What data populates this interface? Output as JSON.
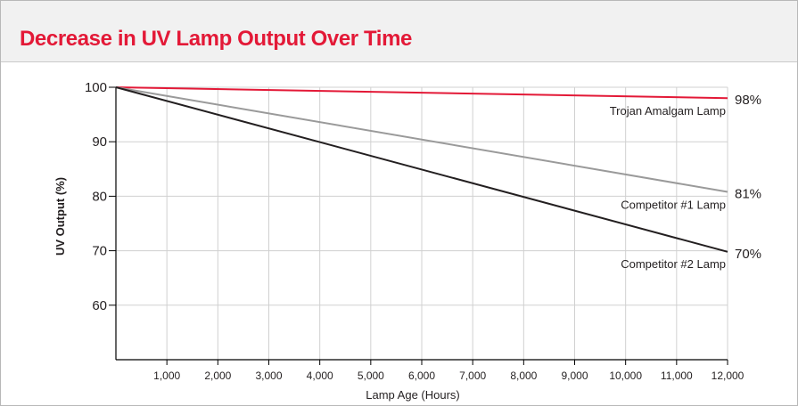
{
  "colors": {
    "accent": "#e31937",
    "header_bg": "#f1f1f1",
    "grid": "#d0d0d0",
    "axis": "#000000"
  },
  "title": "Decrease in UV Lamp Output Over Time",
  "chart_data": {
    "type": "line",
    "title": "Decrease in UV Lamp Output Over Time",
    "xlabel": "Lamp Age (Hours)",
    "ylabel": "UV Output (%)",
    "xlim": [
      0,
      12000
    ],
    "ylim": [
      50,
      100
    ],
    "x_ticks": [
      1000,
      2000,
      3000,
      4000,
      5000,
      6000,
      7000,
      8000,
      9000,
      10000,
      11000,
      12000
    ],
    "x_tick_labels": [
      "1,000",
      "2,000",
      "3,000",
      "4,000",
      "5,000",
      "6,000",
      "7,000",
      "8,000",
      "9,000",
      "10,000",
      "11,000",
      "12,000"
    ],
    "y_ticks": [
      60,
      70,
      80,
      90,
      100
    ],
    "y_tick_labels": [
      "60",
      "70",
      "80",
      "90",
      "100"
    ],
    "grid": true,
    "series": [
      {
        "name": "Trojan Amalgam Lamp",
        "color": "#e31937",
        "x": [
          0,
          12000
        ],
        "y": [
          100,
          98
        ],
        "end_label": "98%"
      },
      {
        "name": "Competitor #1 Lamp",
        "color": "#9a9a9a",
        "x": [
          0,
          12000
        ],
        "y": [
          100,
          80.8
        ],
        "end_label": "81%"
      },
      {
        "name": "Competitor #2 Lamp",
        "color": "#231f20",
        "x": [
          0,
          12000
        ],
        "y": [
          100,
          69.8
        ],
        "end_label": "70%"
      }
    ]
  }
}
